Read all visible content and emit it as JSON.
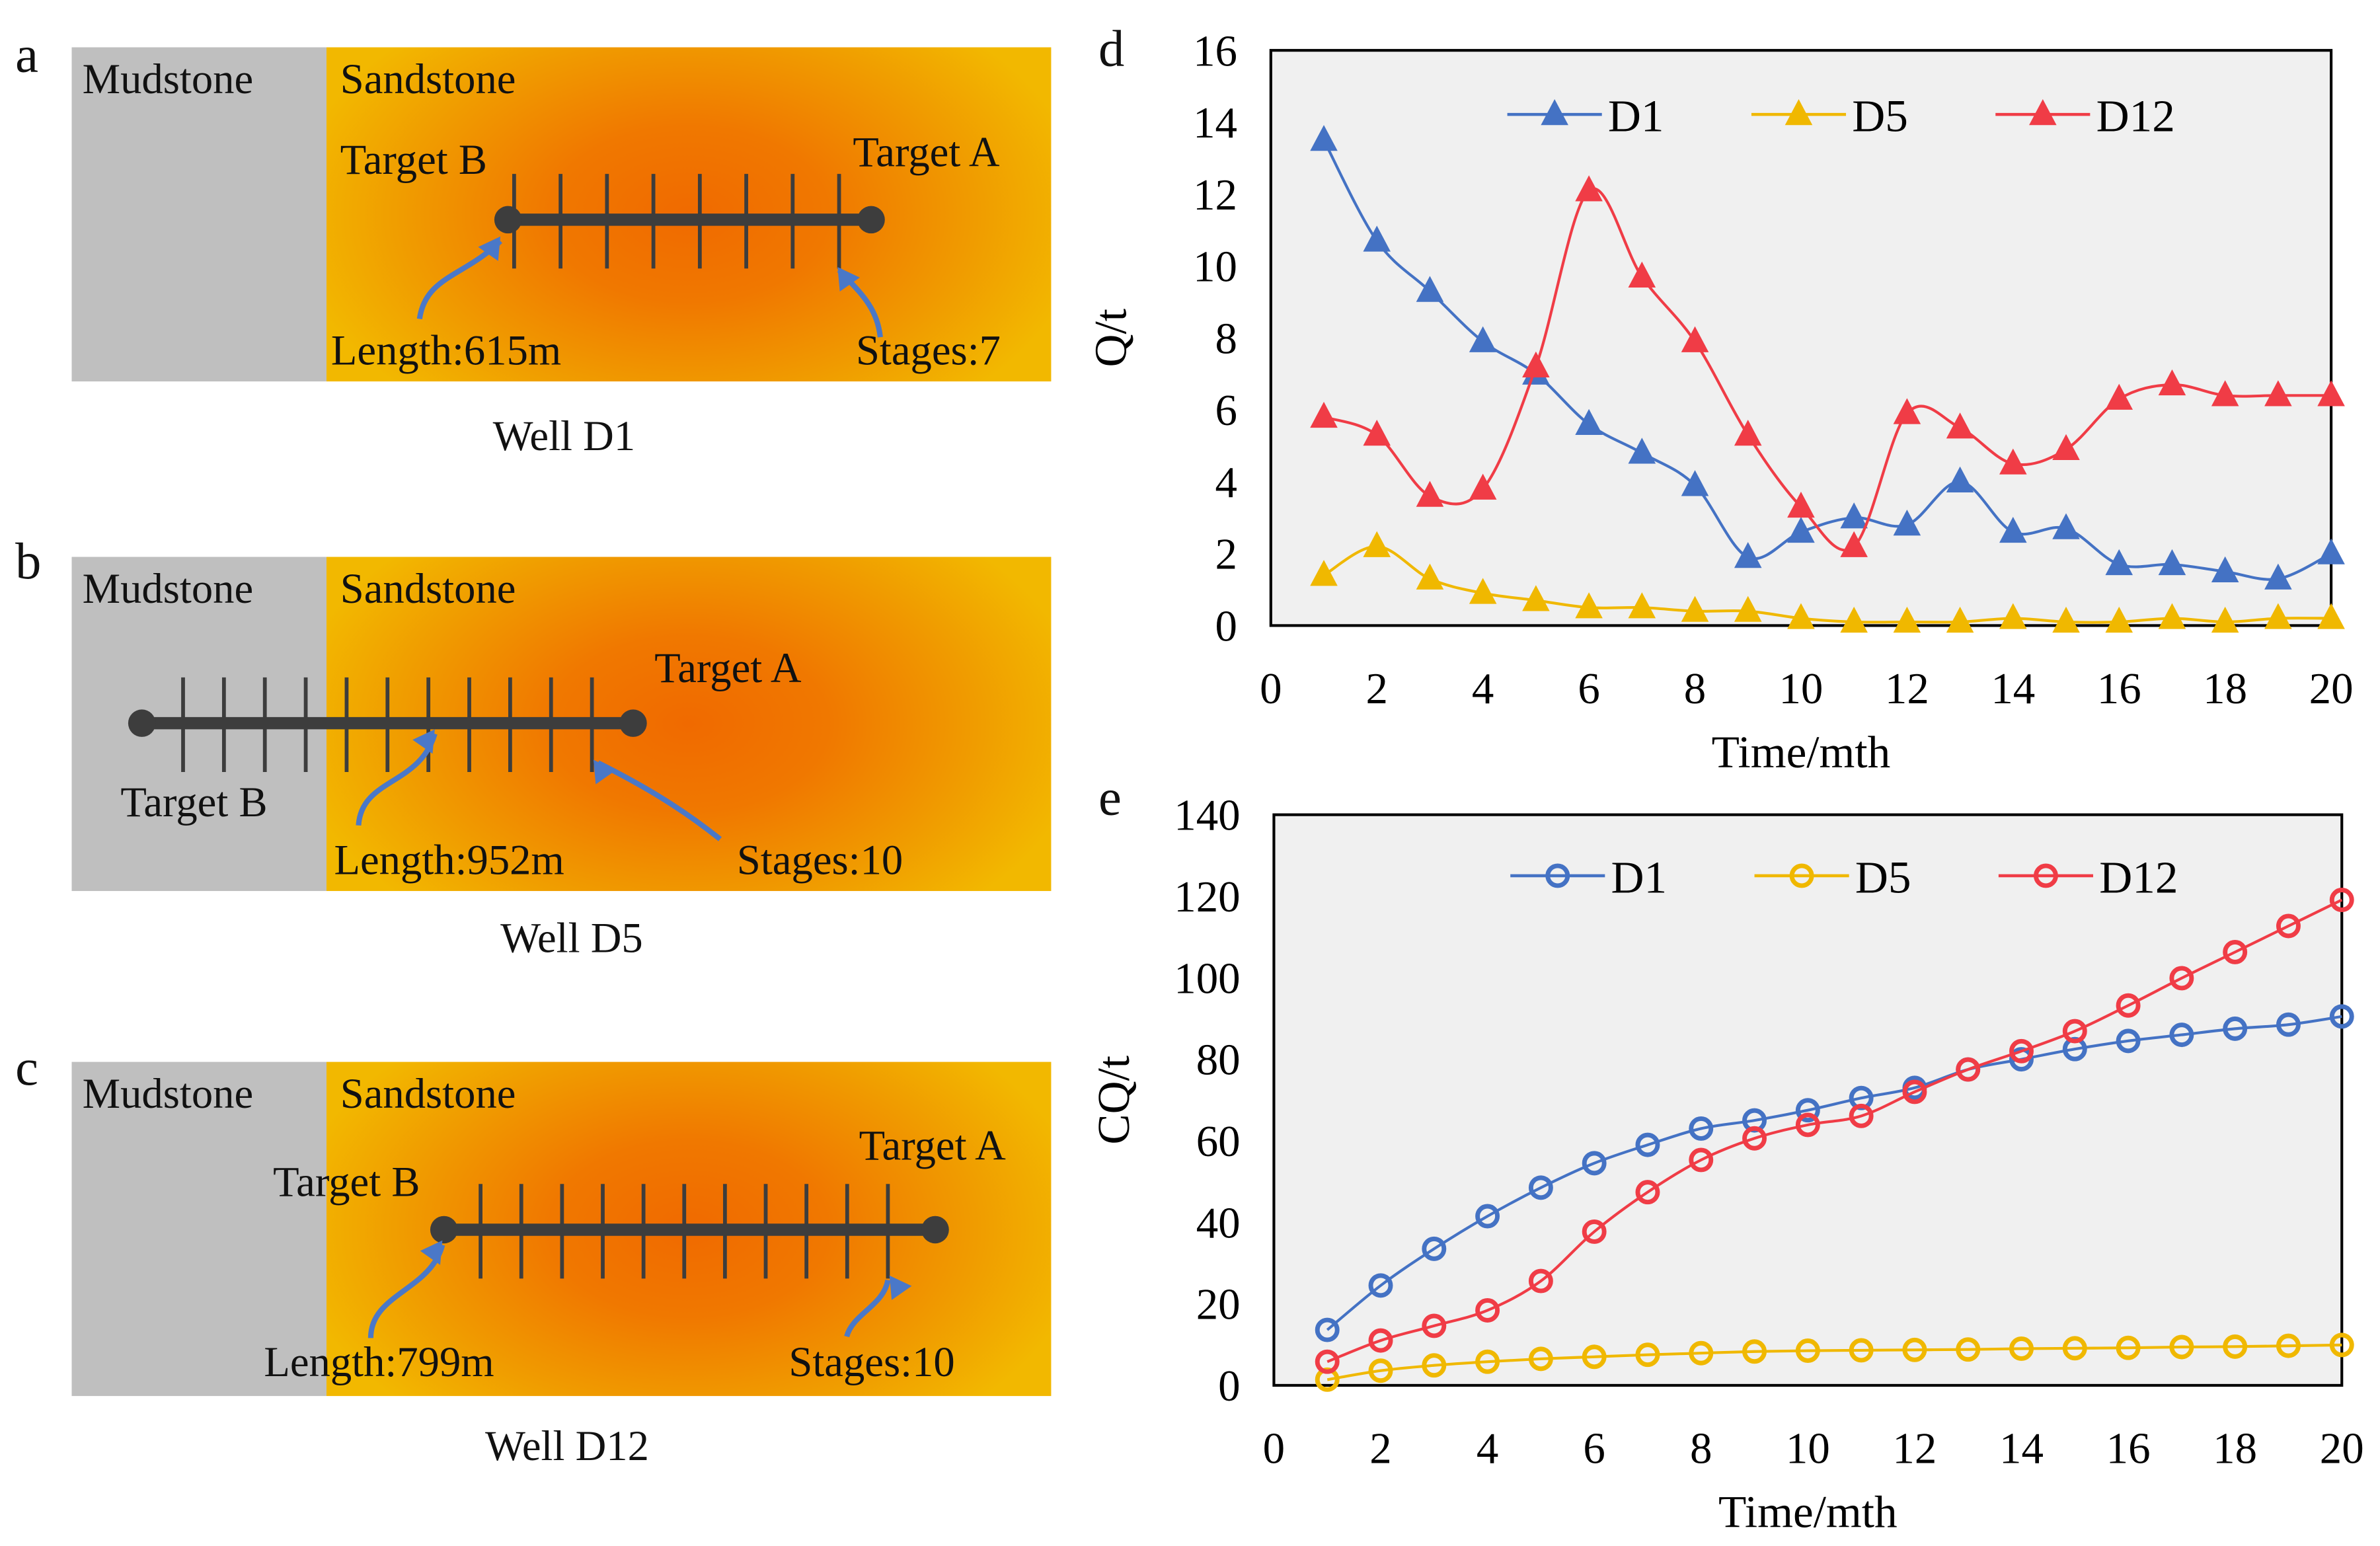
{
  "panels": {
    "a": {
      "letter": "a",
      "mudstone": "Mudstone",
      "sandstone": "Sandstone",
      "target_b": "Target B",
      "target_a": "Target A",
      "length": "Length:615m",
      "stages": "Stages:7",
      "caption": "Well D1",
      "stage_count": 7
    },
    "b": {
      "letter": "b",
      "mudstone": "Mudstone",
      "sandstone": "Sandstone",
      "target_b": "Target B",
      "target_a": "Target A",
      "length": "Length:952m",
      "stages": "Stages:10",
      "caption": "Well D5",
      "stage_count": 10
    },
    "c": {
      "letter": "c",
      "mudstone": "Mudstone",
      "sandstone": "Sandstone",
      "target_b": "Target B",
      "target_a": "Target A",
      "length": "Length:799m",
      "stages": "Stages:10",
      "caption": "Well D12",
      "stage_count": 10
    }
  },
  "colors": {
    "D1": "#4472c4",
    "D5": "#f0b800",
    "D12": "#f03c46",
    "plot_bg": "#f0f0f0",
    "arrow": "#4a78c8",
    "well": "#3d3d3d",
    "mudstone": "#bfbfbf"
  },
  "chart_data": [
    {
      "panel": "d",
      "type": "line",
      "marker": "triangle",
      "title": "",
      "xlabel": "Time/mth",
      "ylabel": "Q/t",
      "xlim": [
        0,
        20
      ],
      "ylim": [
        0,
        16
      ],
      "xticks": [
        0,
        2,
        4,
        6,
        8,
        10,
        12,
        14,
        16,
        18,
        20
      ],
      "yticks": [
        0,
        2,
        4,
        6,
        8,
        10,
        12,
        14,
        16
      ],
      "grid": false,
      "legend": "top-center",
      "x": [
        1,
        2,
        3,
        4,
        5,
        6,
        7,
        8,
        9,
        10,
        11,
        12,
        13,
        14,
        15,
        16,
        17,
        18,
        19,
        20
      ],
      "series": [
        {
          "name": "D1",
          "values": [
            13.5,
            10.7,
            9.3,
            7.9,
            7.0,
            5.6,
            4.8,
            3.9,
            1.9,
            2.6,
            3.0,
            2.8,
            4.0,
            2.6,
            2.7,
            1.7,
            1.7,
            1.5,
            1.3,
            2.0
          ]
        },
        {
          "name": "D5",
          "values": [
            1.4,
            2.2,
            1.3,
            0.9,
            0.7,
            0.5,
            0.5,
            0.4,
            0.4,
            0.2,
            0.1,
            0.1,
            0.1,
            0.2,
            0.1,
            0.1,
            0.2,
            0.1,
            0.2,
            0.2
          ]
        },
        {
          "name": "D12",
          "values": [
            5.8,
            5.3,
            3.6,
            3.8,
            7.2,
            12.1,
            9.7,
            7.9,
            5.3,
            3.3,
            2.2,
            5.9,
            5.5,
            4.5,
            4.9,
            6.3,
            6.7,
            6.4,
            6.4,
            6.4
          ]
        }
      ]
    },
    {
      "panel": "e",
      "type": "line",
      "marker": "circle",
      "title": "",
      "xlabel": "Time/mth",
      "ylabel": "CQ/t",
      "xlim": [
        0,
        20
      ],
      "ylim": [
        0,
        140
      ],
      "xticks": [
        0,
        2,
        4,
        6,
        8,
        10,
        12,
        14,
        16,
        18,
        20
      ],
      "yticks": [
        0,
        20,
        40,
        60,
        80,
        100,
        120,
        140
      ],
      "grid": false,
      "legend": "top-center",
      "x": [
        1,
        2,
        3,
        4,
        5,
        6,
        7,
        8,
        9,
        10,
        11,
        12,
        13,
        14,
        15,
        16,
        17,
        18,
        19,
        20
      ],
      "series": [
        {
          "name": "D1",
          "values": [
            13.6,
            24.5,
            33.5,
            41.5,
            48.5,
            54.5,
            59.0,
            63.0,
            65.0,
            67.5,
            70.5,
            73.0,
            77.5,
            80.0,
            82.5,
            84.5,
            86.0,
            87.5,
            88.5,
            90.5
          ]
        },
        {
          "name": "D5",
          "values": [
            1.4,
            3.6,
            4.9,
            5.8,
            6.5,
            7.0,
            7.5,
            7.9,
            8.3,
            8.5,
            8.6,
            8.7,
            8.8,
            9.0,
            9.1,
            9.2,
            9.4,
            9.5,
            9.7,
            9.9
          ]
        },
        {
          "name": "D12",
          "values": [
            5.8,
            11.0,
            14.6,
            18.4,
            25.6,
            37.7,
            47.4,
            55.3,
            60.6,
            63.9,
            66.1,
            72.0,
            77.5,
            82.0,
            86.9,
            93.2,
            99.9,
            106.3,
            112.7,
            119.1
          ]
        }
      ]
    }
  ]
}
